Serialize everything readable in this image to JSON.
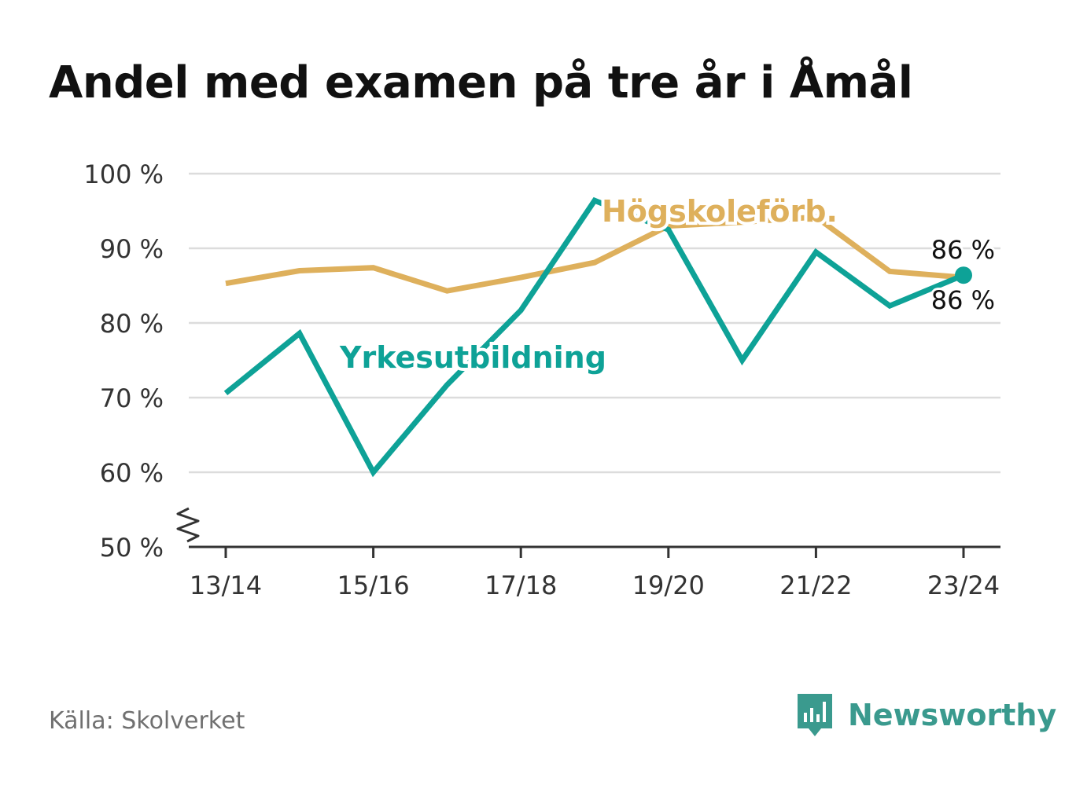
{
  "title": "Andel med examen på tre år i Åmål",
  "source": "Källa: Skolverket",
  "brand": {
    "name": "Newsworthy",
    "icon": "newsworthy-logo-icon",
    "color": "#3a9a8e"
  },
  "chart_data": {
    "type": "line",
    "x": [
      "13/14",
      "14/15",
      "15/16",
      "16/17",
      "17/18",
      "18/19",
      "19/20",
      "20/21",
      "21/22",
      "22/23",
      "23/24"
    ],
    "x_tick_labels": [
      "13/14",
      "15/16",
      "17/18",
      "19/20",
      "21/22",
      "23/24"
    ],
    "ylim": [
      50,
      100
    ],
    "y_ticks": [
      50,
      60,
      70,
      80,
      90,
      100
    ],
    "y_tick_labels": [
      "50 %",
      "60 %",
      "70 %",
      "80 %",
      "90 %",
      "100 %"
    ],
    "y_axis_break": true,
    "grid": true,
    "series": [
      {
        "name": "Högskoleförb.",
        "color": "#deb05c",
        "values": [
          85.3,
          87.0,
          87.4,
          84.3,
          86.1,
          88.1,
          93.0,
          93.5,
          94.2,
          86.9,
          86.1
        ],
        "end_label": "86 %"
      },
      {
        "name": "Yrkesutbildning",
        "color": "#0ea297",
        "values": [
          70.6,
          78.6,
          60.0,
          71.7,
          81.7,
          96.4,
          92.5,
          75.0,
          89.5,
          82.3,
          86.4
        ],
        "end_label": "86 %"
      }
    ]
  }
}
